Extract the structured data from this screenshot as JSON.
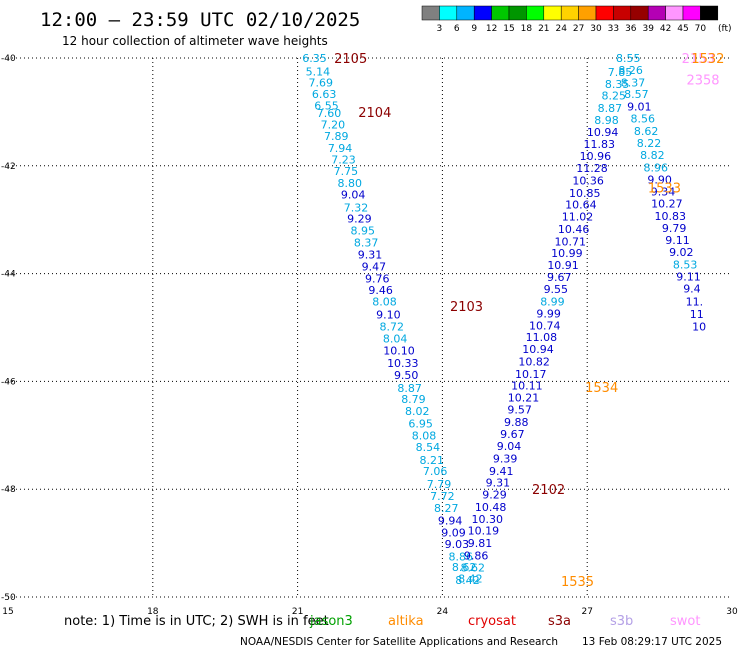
{
  "header": {
    "title": "12:00 – 23:59 UTC 02/10/2025",
    "subtitle": "12 hour collection of altimeter wave heights"
  },
  "colorbar": {
    "colors": [
      "#808080",
      "#00ffff",
      "#00b4ff",
      "#0000ff",
      "#00c800",
      "#009600",
      "#00ff00",
      "#ffff00",
      "#ffd200",
      "#ffa000",
      "#ff0000",
      "#c80000",
      "#960000",
      "#b400b4",
      "#ff96ff",
      "#ff00ff",
      "#000000"
    ],
    "labels": [
      "3",
      "6",
      "9",
      "12",
      "15",
      "18",
      "21",
      "24",
      "27",
      "30",
      "33",
      "36",
      "39",
      "42",
      "45",
      "70"
    ],
    "unit": "(ft)"
  },
  "footer": {
    "note": "note:  1) Time is in UTC; 2) SWH is in feet",
    "credit": "NOAA/NESDIS Center for Satellite Applications and Research",
    "timestamp": "13 Feb 08:29:17 UTC 2025",
    "missions": [
      {
        "label": "jason3",
        "color": "#00a000"
      },
      {
        "label": "altika",
        "color": "#ff8c00"
      },
      {
        "label": "cryosat",
        "color": "#e00000"
      },
      {
        "label": "s3a",
        "color": "#8b0000"
      },
      {
        "label": "s3b",
        "color": "#b4a0e6"
      },
      {
        "label": "swot",
        "color": "#ff96ff"
      }
    ]
  },
  "chart_data": {
    "type": "scatter",
    "xlim": [
      15,
      30
    ],
    "ylim": [
      -50,
      -40
    ],
    "x_ticks": [
      "15",
      "18",
      "21",
      "24",
      "27",
      "30"
    ],
    "y_ticks": [
      "-40",
      "-42",
      "-44",
      "-46",
      "-48",
      "-50"
    ],
    "grid": true,
    "track_labels": [
      {
        "text": "2105",
        "x": 22.1,
        "y": -40.0,
        "color": "#8b0000"
      },
      {
        "text": "2104",
        "x": 22.6,
        "y": -41.0,
        "color": "#8b0000"
      },
      {
        "text": "2103",
        "x": 24.5,
        "y": -44.6,
        "color": "#8b0000"
      },
      {
        "text": "2102",
        "x": 26.2,
        "y": -48.0,
        "color": "#8b0000"
      },
      {
        "text": "1535",
        "x": 26.8,
        "y": -49.7,
        "color": "#ff8c00"
      },
      {
        "text": "1534",
        "x": 27.3,
        "y": -46.1,
        "color": "#ff8c00"
      },
      {
        "text": "1533",
        "x": 28.6,
        "y": -42.4,
        "color": "#ff8c00"
      },
      {
        "text": "2358",
        "x": 29.4,
        "y": -40.4,
        "color": "#ff96ff"
      },
      {
        "text": "2153",
        "x": 29.3,
        "y": -40.0,
        "color": "#ff96ff"
      },
      {
        "text": "1532",
        "x": 29.5,
        "y": -40.0,
        "color": "#ff8c00"
      }
    ],
    "series": [
      {
        "points": [
          {
            "x": 21.35,
            "y": -40.0,
            "v": "6.35"
          },
          {
            "x": 21.42,
            "y": -40.25,
            "v": "5.14"
          },
          {
            "x": 21.48,
            "y": -40.45,
            "v": "7.69"
          },
          {
            "x": 21.55,
            "y": -40.67,
            "v": "6.63"
          },
          {
            "x": 21.6,
            "y": -40.88,
            "v": "6.55"
          },
          {
            "x": 21.65,
            "y": -41.02,
            "v": "7.60"
          },
          {
            "x": 21.73,
            "y": -41.23,
            "v": "7.20"
          },
          {
            "x": 21.8,
            "y": -41.45,
            "v": "7.89"
          },
          {
            "x": 21.88,
            "y": -41.67,
            "v": "7.94"
          },
          {
            "x": 21.95,
            "y": -41.88,
            "v": "7.23"
          },
          {
            "x": 22.0,
            "y": -42.1,
            "v": "7.75"
          },
          {
            "x": 22.08,
            "y": -42.32,
            "v": "8.80"
          },
          {
            "x": 22.15,
            "y": -42.53,
            "v": "9.04"
          },
          {
            "x": 22.21,
            "y": -42.77,
            "v": "7.32"
          },
          {
            "x": 22.28,
            "y": -42.98,
            "v": "9.29"
          },
          {
            "x": 22.35,
            "y": -43.2,
            "v": "8.95"
          },
          {
            "x": 22.42,
            "y": -43.42,
            "v": "8.37"
          },
          {
            "x": 22.5,
            "y": -43.65,
            "v": "9.31"
          },
          {
            "x": 22.58,
            "y": -43.87,
            "v": "9.47"
          },
          {
            "x": 22.65,
            "y": -44.09,
            "v": "9.76"
          },
          {
            "x": 22.72,
            "y": -44.3,
            "v": "9.46"
          },
          {
            "x": 22.8,
            "y": -44.52,
            "v": "8.08"
          },
          {
            "x": 22.88,
            "y": -44.76,
            "v": "9.10"
          },
          {
            "x": 22.95,
            "y": -44.98,
            "v": "8.72"
          },
          {
            "x": 23.02,
            "y": -45.2,
            "v": "8.04"
          },
          {
            "x": 23.1,
            "y": -45.43,
            "v": "10.10"
          },
          {
            "x": 23.18,
            "y": -45.66,
            "v": "10.33"
          },
          {
            "x": 23.25,
            "y": -45.88,
            "v": "9.50"
          },
          {
            "x": 23.32,
            "y": -46.12,
            "v": "8.87"
          },
          {
            "x": 23.4,
            "y": -46.33,
            "v": "8.79"
          },
          {
            "x": 23.48,
            "y": -46.55,
            "v": "8.02"
          },
          {
            "x": 23.55,
            "y": -46.78,
            "v": "6.95"
          },
          {
            "x": 23.62,
            "y": -47.0,
            "v": "8.08"
          },
          {
            "x": 23.7,
            "y": -47.22,
            "v": "8.54"
          },
          {
            "x": 23.78,
            "y": -47.46,
            "v": "8.21"
          },
          {
            "x": 23.85,
            "y": -47.66,
            "v": "7.06"
          },
          {
            "x": 23.93,
            "y": -47.9,
            "v": "7.79"
          },
          {
            "x": 24.0,
            "y": -48.13,
            "v": "7.72"
          },
          {
            "x": 24.08,
            "y": -48.35,
            "v": "8.27"
          },
          {
            "x": 24.16,
            "y": -48.58,
            "v": "9.94"
          },
          {
            "x": 24.23,
            "y": -48.8,
            "v": "9.09"
          },
          {
            "x": 24.3,
            "y": -49.02,
            "v": "9.03"
          },
          {
            "x": 24.38,
            "y": -49.25,
            "v": "8.86"
          },
          {
            "x": 24.45,
            "y": -49.44,
            "v": "8.62"
          },
          {
            "x": 24.52,
            "y": -49.68,
            "v": "8.42"
          }
        ]
      },
      {
        "points": [
          {
            "x": 24.58,
            "y": -49.66,
            "v": "8.42"
          },
          {
            "x": 24.63,
            "y": -49.45,
            "v": "8.62"
          },
          {
            "x": 24.7,
            "y": -49.23,
            "v": "9.86"
          },
          {
            "x": 24.78,
            "y": -49.0,
            "v": "9.81"
          },
          {
            "x": 24.85,
            "y": -48.77,
            "v": "10.19"
          },
          {
            "x": 24.93,
            "y": -48.55,
            "v": "10.30"
          },
          {
            "x": 25.0,
            "y": -48.33,
            "v": "10.48"
          },
          {
            "x": 25.08,
            "y": -48.1,
            "v": "9.29"
          },
          {
            "x": 25.15,
            "y": -47.88,
            "v": "9.31"
          },
          {
            "x": 25.22,
            "y": -47.66,
            "v": "9.41"
          },
          {
            "x": 25.3,
            "y": -47.43,
            "v": "9.39"
          },
          {
            "x": 25.38,
            "y": -47.2,
            "v": "9.04"
          },
          {
            "x": 25.45,
            "y": -46.98,
            "v": "9.67"
          },
          {
            "x": 25.53,
            "y": -46.75,
            "v": "9.88"
          },
          {
            "x": 25.6,
            "y": -46.52,
            "v": "9.57"
          },
          {
            "x": 25.68,
            "y": -46.3,
            "v": "10.21"
          },
          {
            "x": 25.75,
            "y": -46.08,
            "v": "10.11"
          },
          {
            "x": 25.83,
            "y": -45.86,
            "v": "10.17"
          },
          {
            "x": 25.9,
            "y": -45.63,
            "v": "10.82"
          },
          {
            "x": 25.98,
            "y": -45.4,
            "v": "10.94"
          },
          {
            "x": 26.05,
            "y": -45.18,
            "v": "11.08"
          },
          {
            "x": 26.12,
            "y": -44.96,
            "v": "10.74"
          },
          {
            "x": 26.2,
            "y": -44.74,
            "v": "9.99"
          },
          {
            "x": 26.28,
            "y": -44.52,
            "v": "8.99"
          },
          {
            "x": 26.35,
            "y": -44.29,
            "v": "9.55"
          },
          {
            "x": 26.42,
            "y": -44.06,
            "v": "9.67"
          },
          {
            "x": 26.5,
            "y": -43.84,
            "v": "10.91"
          },
          {
            "x": 26.58,
            "y": -43.62,
            "v": "10.99"
          },
          {
            "x": 26.65,
            "y": -43.4,
            "v": "10.71"
          },
          {
            "x": 26.72,
            "y": -43.17,
            "v": "10.46"
          },
          {
            "x": 26.8,
            "y": -42.94,
            "v": "11.02"
          },
          {
            "x": 26.87,
            "y": -42.72,
            "v": "10.64"
          },
          {
            "x": 26.95,
            "y": -42.5,
            "v": "10.85"
          },
          {
            "x": 27.02,
            "y": -42.27,
            "v": "10.36"
          },
          {
            "x": 27.1,
            "y": -42.04,
            "v": "11.28"
          },
          {
            "x": 27.17,
            "y": -41.82,
            "v": "10.96"
          },
          {
            "x": 27.25,
            "y": -41.6,
            "v": "11.83"
          },
          {
            "x": 27.32,
            "y": -41.37,
            "v": "10.94"
          },
          {
            "x": 27.4,
            "y": -41.15,
            "v": "8.98"
          },
          {
            "x": 27.47,
            "y": -40.93,
            "v": "8.87"
          },
          {
            "x": 27.55,
            "y": -40.7,
            "v": "8.25"
          },
          {
            "x": 27.62,
            "y": -40.48,
            "v": "8.35"
          },
          {
            "x": 27.68,
            "y": -40.26,
            "v": "7.85"
          }
        ]
      },
      {
        "points": [
          {
            "x": 27.85,
            "y": -40.0,
            "v": "8.55"
          },
          {
            "x": 27.9,
            "y": -40.22,
            "v": "8.26"
          },
          {
            "x": 27.95,
            "y": -40.45,
            "v": "8.37"
          },
          {
            "x": 28.02,
            "y": -40.67,
            "v": "8.57"
          },
          {
            "x": 28.08,
            "y": -40.9,
            "v": "9.01"
          },
          {
            "x": 28.15,
            "y": -41.12,
            "v": "8.56"
          },
          {
            "x": 28.22,
            "y": -41.35,
            "v": "8.62"
          },
          {
            "x": 28.28,
            "y": -41.58,
            "v": "8.22"
          },
          {
            "x": 28.35,
            "y": -41.8,
            "v": "8.82"
          },
          {
            "x": 28.42,
            "y": -42.03,
            "v": "8.96"
          },
          {
            "x": 28.5,
            "y": -42.25,
            "v": "9.90"
          },
          {
            "x": 28.57,
            "y": -42.48,
            "v": "9.34"
          },
          {
            "x": 28.65,
            "y": -42.7,
            "v": "10.27"
          },
          {
            "x": 28.72,
            "y": -42.93,
            "v": "10.83"
          },
          {
            "x": 28.8,
            "y": -43.15,
            "v": "9.79"
          },
          {
            "x": 28.87,
            "y": -43.38,
            "v": "9.11"
          },
          {
            "x": 28.95,
            "y": -43.6,
            "v": "9.02"
          },
          {
            "x": 29.03,
            "y": -43.83,
            "v": "8.53"
          },
          {
            "x": 29.1,
            "y": -44.05,
            "v": "9.11"
          },
          {
            "x": 29.17,
            "y": -44.28,
            "v": "9.4"
          },
          {
            "x": 29.22,
            "y": -44.52,
            "v": "11."
          },
          {
            "x": 29.27,
            "y": -44.75,
            "v": "11"
          },
          {
            "x": 29.32,
            "y": -44.98,
            "v": "10"
          }
        ]
      }
    ]
  }
}
